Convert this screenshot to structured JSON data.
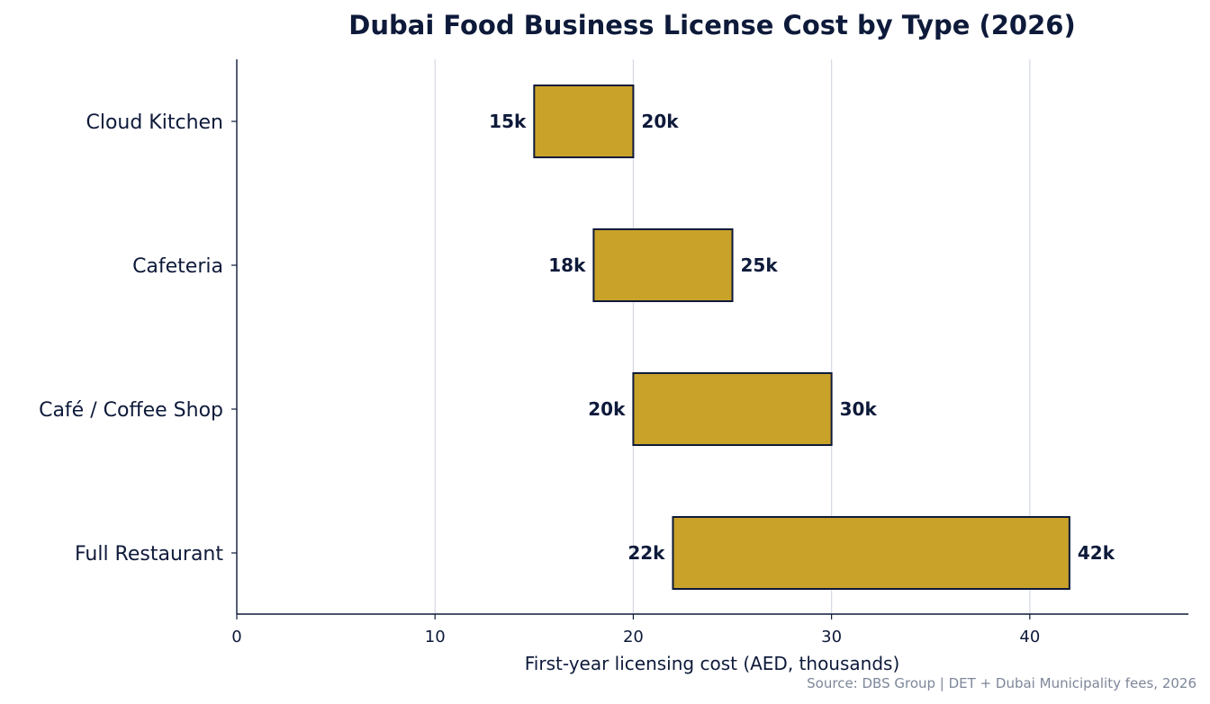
{
  "chart_data": {
    "type": "bar",
    "orientation": "horizontal",
    "title": "Dubai Food Business License Cost by Type (2026)",
    "xlabel": "First-year licensing cost (AED, thousands)",
    "ylabel": "",
    "xlim": [
      0,
      48
    ],
    "x_ticks": [
      0,
      10,
      20,
      30,
      40
    ],
    "categories": [
      "Cloud Kitchen",
      "Cafeteria",
      "Café / Coffee Shop",
      "Full Restaurant"
    ],
    "ranges": [
      {
        "low": 15,
        "high": 20,
        "low_label": "15k",
        "high_label": "20k"
      },
      {
        "low": 18,
        "high": 25,
        "low_label": "18k",
        "high_label": "25k"
      },
      {
        "low": 20,
        "high": 30,
        "low_label": "20k",
        "high_label": "30k"
      },
      {
        "low": 22,
        "high": 42,
        "low_label": "22k",
        "high_label": "42k"
      }
    ],
    "grid": "vertical",
    "colors": {
      "bar_fill": "#c9a229",
      "bar_edge": "#0e1a3a",
      "text": "#0e1a3a",
      "grid": "#d5d9e6",
      "source": "#7d8799"
    },
    "source": "Source: DBS Group  |  DET + Dubai Municipality fees, 2026"
  }
}
